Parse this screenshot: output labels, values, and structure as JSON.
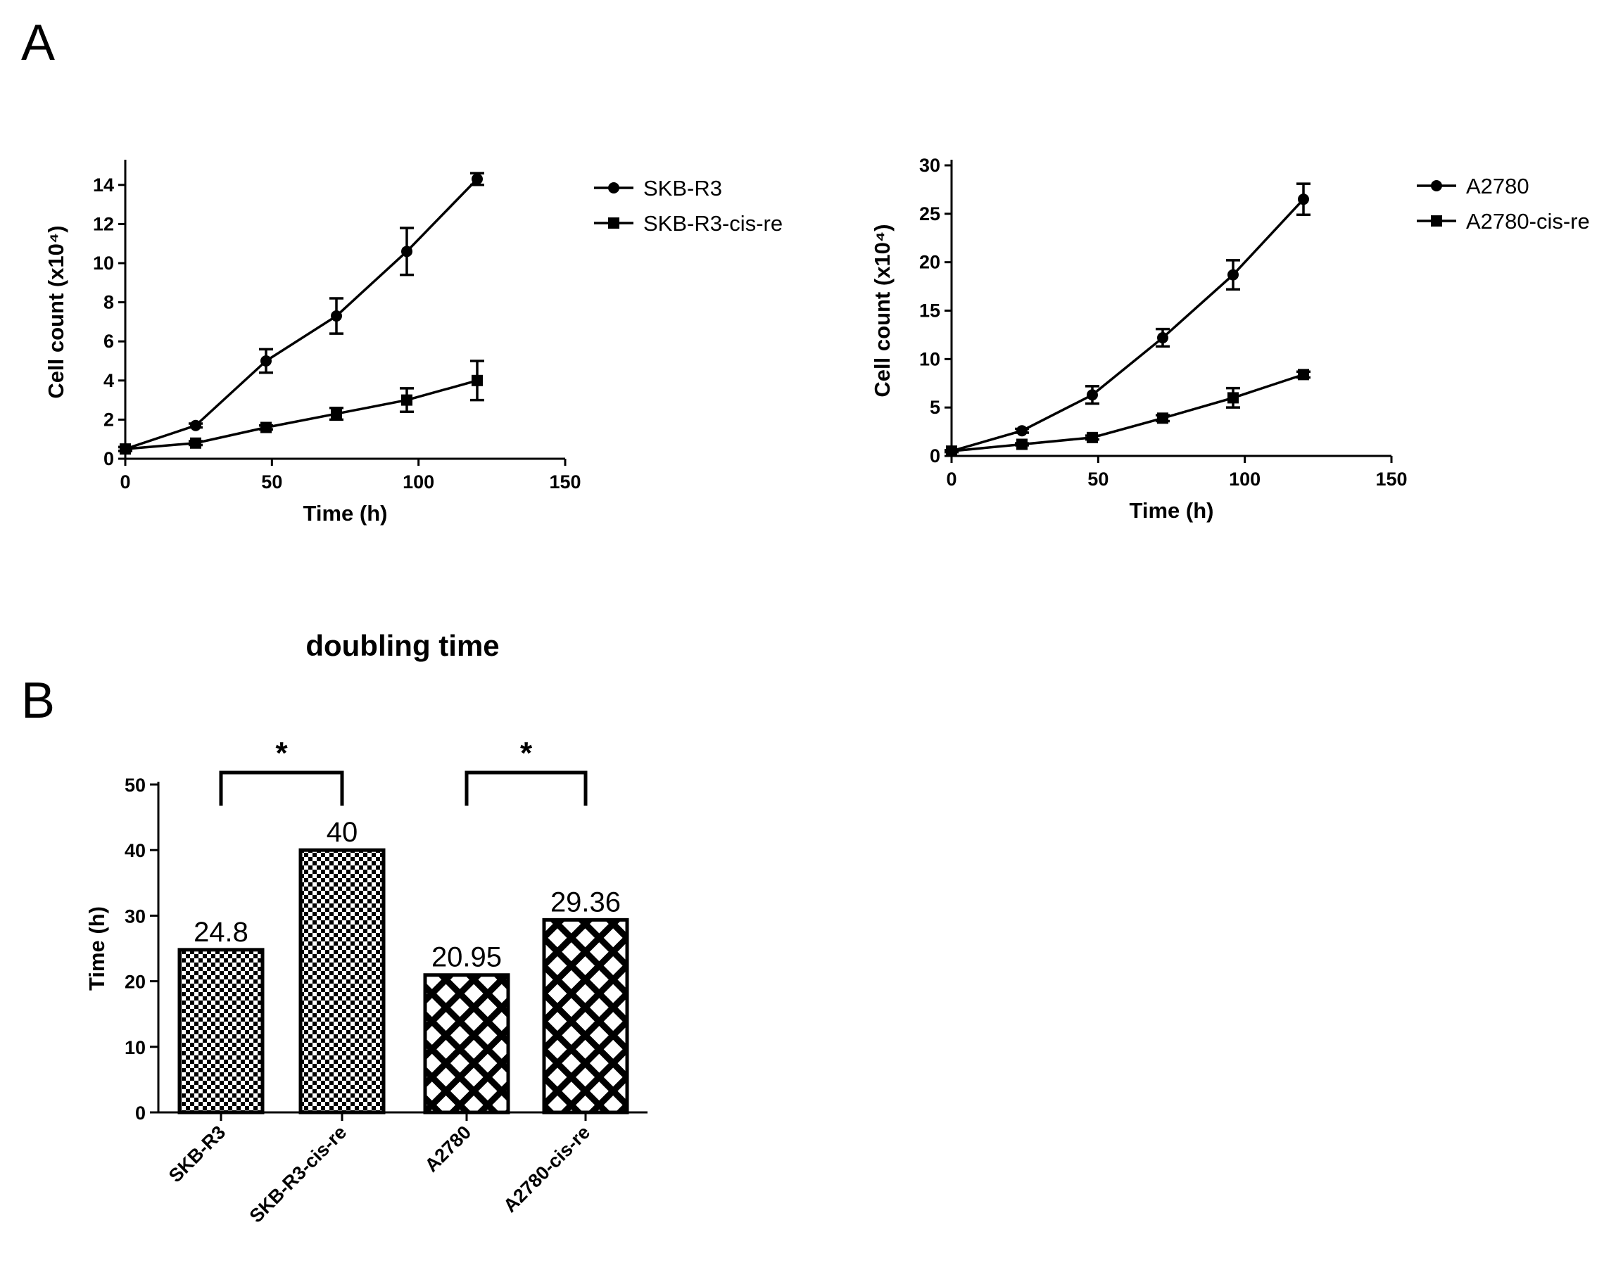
{
  "panel_a_label": "A",
  "panel_b_label": "B",
  "chart_data": [
    {
      "type": "line",
      "id": "growth-skbr3",
      "title": "",
      "xlabel": "Time (h)",
      "ylabel": "Cell count (x10⁴)",
      "xlim": [
        0,
        150
      ],
      "ylim": [
        0,
        15
      ],
      "xticks": [
        0,
        50,
        100,
        150
      ],
      "yticks": [
        0,
        2,
        4,
        6,
        8,
        10,
        12,
        14
      ],
      "series": [
        {
          "name": "SKB-R3",
          "marker": "circle",
          "x": [
            0,
            24,
            48,
            72,
            96,
            120
          ],
          "y": [
            0.5,
            1.7,
            5.0,
            7.3,
            10.6,
            14.3
          ],
          "err": [
            0.1,
            0.1,
            0.6,
            0.9,
            1.2,
            0.3
          ]
        },
        {
          "name": "SKB-R3-cis-re",
          "marker": "square",
          "x": [
            0,
            24,
            48,
            72,
            96,
            120
          ],
          "y": [
            0.5,
            0.8,
            1.6,
            2.3,
            3.0,
            4.0
          ],
          "err": [
            0.1,
            0.1,
            0.1,
            0.3,
            0.6,
            1.0
          ]
        }
      ]
    },
    {
      "type": "line",
      "id": "growth-a2780",
      "title": "",
      "xlabel": "Time (h)",
      "ylabel": "Cell count (x10⁴)",
      "xlim": [
        0,
        150
      ],
      "ylim": [
        0,
        30
      ],
      "xticks": [
        0,
        50,
        100,
        150
      ],
      "yticks": [
        0,
        5,
        10,
        15,
        20,
        25,
        30
      ],
      "series": [
        {
          "name": "A2780",
          "marker": "circle",
          "x": [
            0,
            24,
            48,
            72,
            96,
            120
          ],
          "y": [
            0.5,
            2.6,
            6.3,
            12.2,
            18.7,
            26.5
          ],
          "err": [
            0.1,
            0.2,
            0.9,
            0.9,
            1.5,
            1.6
          ]
        },
        {
          "name": "A2780-cis-re",
          "marker": "square",
          "x": [
            0,
            24,
            48,
            72,
            96,
            120
          ],
          "y": [
            0.5,
            1.2,
            1.9,
            3.9,
            6.0,
            8.4
          ],
          "err": [
            0.1,
            0.1,
            0.2,
            0.3,
            1.0,
            0.3
          ]
        }
      ]
    },
    {
      "type": "bar",
      "id": "doubling-time",
      "title": "doubling time",
      "xlabel": "",
      "ylabel": "Time (h)",
      "ylim": [
        0,
        50
      ],
      "yticks": [
        0,
        10,
        20,
        30,
        40,
        50
      ],
      "categories": [
        "SKB-R3",
        "SKB-R3-cis-re",
        "A2780",
        "A2780-cis-re"
      ],
      "values": [
        24.8,
        40,
        20.95,
        29.36
      ],
      "value_labels": [
        "24.8",
        "40",
        "20.95",
        "29.36"
      ],
      "patterns": [
        "checker",
        "checker",
        "crosshatch",
        "crosshatch"
      ],
      "significance": [
        {
          "between": [
            "SKB-R3",
            "SKB-R3-cis-re"
          ],
          "label": "*"
        },
        {
          "between": [
            "A2780",
            "A2780-cis-re"
          ],
          "label": "*"
        }
      ]
    }
  ]
}
